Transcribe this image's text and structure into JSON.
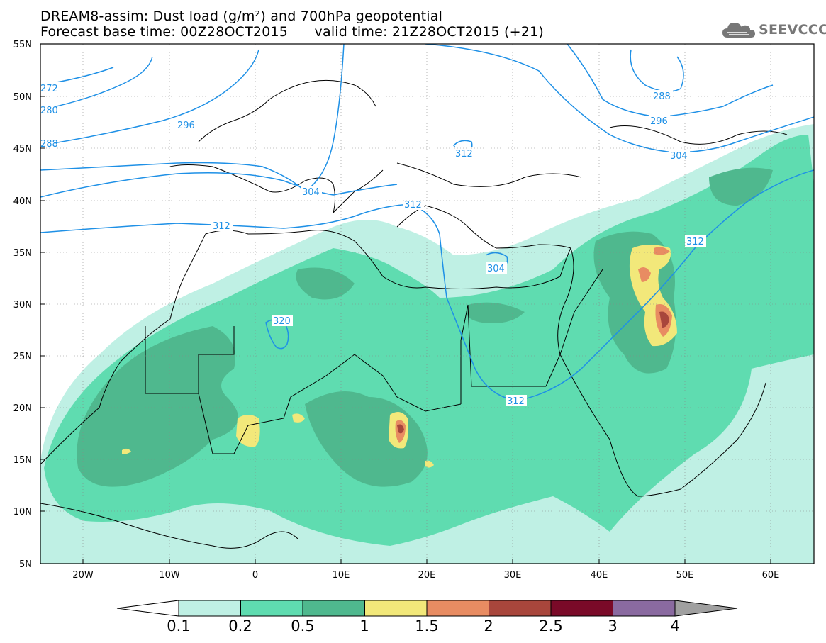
{
  "title_line1": "DREAM8-assim: Dust load (g/m²) and 700hPa geopotential",
  "title_line2_base": "Forecast base time: 00Z28OCT2015",
  "title_line2_valid": "valid time: 21Z28OCT2015 (+21)",
  "logo_text": "SEEVCCC",
  "lat_labels": [
    "55N",
    "50N",
    "45N",
    "40N",
    "35N",
    "30N",
    "25N",
    "20N",
    "15N",
    "10N",
    "5N"
  ],
  "lon_labels": [
    "20W",
    "10W",
    "0",
    "10E",
    "20E",
    "30E",
    "40E",
    "50E",
    "60E"
  ],
  "contour_labels": [
    "272",
    "280",
    "288",
    "296",
    "304",
    "312",
    "312",
    "304",
    "312",
    "320",
    "312",
    "312",
    "288",
    "296",
    "304",
    "312",
    "304"
  ],
  "colorbar": {
    "labels": [
      "0.1",
      "0.2",
      "0.5",
      "1",
      "1.5",
      "2",
      "2.5",
      "3",
      "4"
    ],
    "colors": [
      "#bff0e4",
      "#5fdcb0",
      "#4fb88e",
      "#f2e87a",
      "#e88c62",
      "#a8463c",
      "#7a0a28",
      "#8a6aa0"
    ],
    "under_color": "#ffffff",
    "over_color": "#a0a0a0"
  },
  "colors": {
    "contour": "#1e90e6",
    "coast": "#000000"
  }
}
